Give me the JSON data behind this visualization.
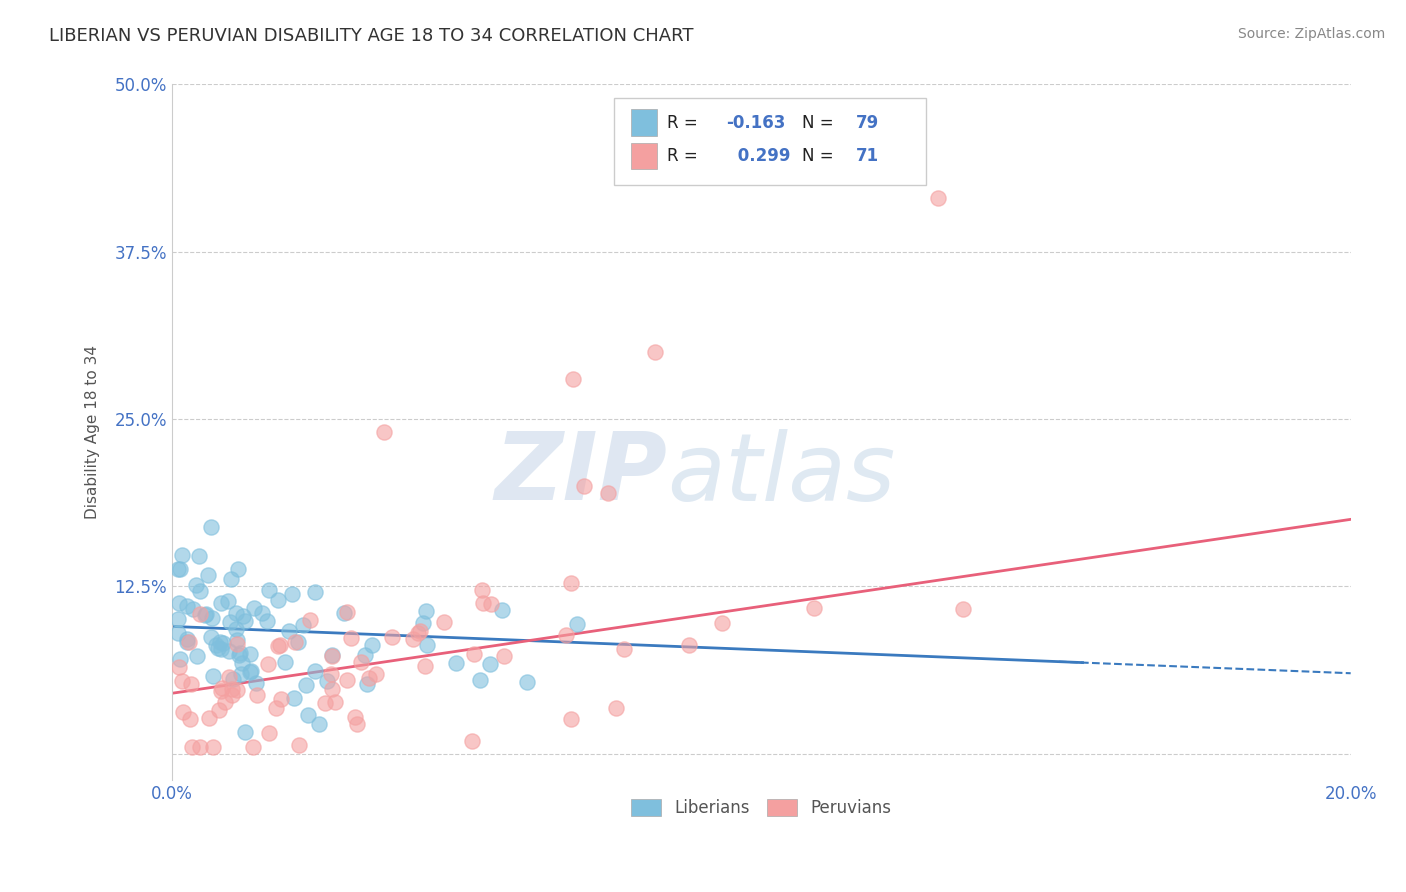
{
  "title": "LIBERIAN VS PERUVIAN DISABILITY AGE 18 TO 34 CORRELATION CHART",
  "source_text": "Source: ZipAtlas.com",
  "ylabel": "Disability Age 18 to 34",
  "x_min": 0.0,
  "x_max": 0.2,
  "y_min": -0.02,
  "y_max": 0.5,
  "y_ticks": [
    0.0,
    0.125,
    0.25,
    0.375,
    0.5
  ],
  "y_tick_labels": [
    "",
    "12.5%",
    "25.0%",
    "37.5%",
    "50.0%"
  ],
  "liberian_color": "#7fbfdd",
  "peruvian_color": "#f4a0a0",
  "liberian_line_color": "#3a7abf",
  "peruvian_line_color": "#e8607a",
  "R_liberian": -0.163,
  "N_liberian": 79,
  "R_peruvian": 0.299,
  "N_peruvian": 71,
  "watermark_text": "ZIPatlas",
  "legend_label_1": "Liberians",
  "legend_label_2": "Peruvians",
  "title_color": "#333333",
  "tick_color": "#4472c4",
  "grid_color": "#cccccc"
}
